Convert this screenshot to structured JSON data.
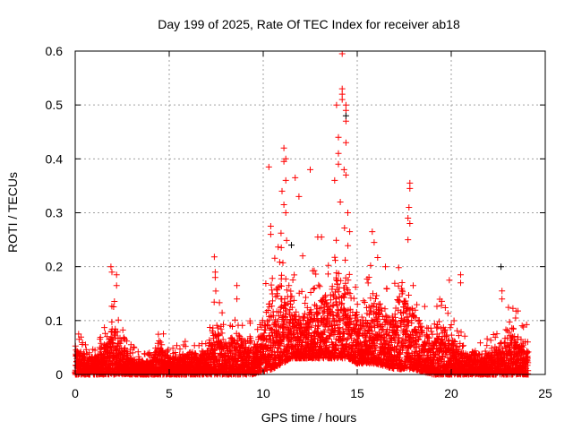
{
  "chart_data": {
    "type": "scatter",
    "title": "Day 199 of 2025, Rate Of TEC Index for receiver ab18",
    "xlabel": "GPS time / hours",
    "ylabel": "ROTI / TECUs",
    "xlim": [
      0,
      25
    ],
    "ylim": [
      0,
      0.6
    ],
    "xticks": [
      0,
      5,
      10,
      15,
      20,
      25
    ],
    "xtick_labels": [
      "0",
      "5",
      "10",
      "15",
      "20",
      "25"
    ],
    "yticks": [
      0,
      0.1,
      0.2,
      0.3,
      0.4,
      0.5,
      0.6
    ],
    "ytick_labels": [
      "0",
      "0.1",
      "0.2",
      "0.3",
      "0.4",
      "0.5",
      "0.6"
    ],
    "grid": true,
    "marker": "+",
    "color": "#ff0000",
    "secondary_color": "#000000",
    "data_extent_hours": [
      0,
      24.1
    ],
    "dense_envelope": {
      "x": [
        0,
        0.5,
        1,
        1.5,
        2,
        2.5,
        3,
        3.5,
        4,
        4.5,
        5,
        5.5,
        6,
        6.5,
        7,
        7.5,
        8,
        8.5,
        9,
        9.5,
        10,
        10.5,
        11,
        11.5,
        12,
        12.5,
        13,
        13.5,
        14,
        14.5,
        15,
        15.5,
        16,
        16.5,
        17,
        17.5,
        18,
        18.5,
        19,
        19.5,
        20,
        20.5,
        21,
        21.5,
        22,
        22.5,
        23,
        23.5,
        24
      ],
      "ymax": [
        0.06,
        0.05,
        0.04,
        0.06,
        0.13,
        0.07,
        0.04,
        0.03,
        0.03,
        0.07,
        0.045,
        0.05,
        0.05,
        0.045,
        0.05,
        0.12,
        0.08,
        0.09,
        0.08,
        0.07,
        0.12,
        0.17,
        0.2,
        0.17,
        0.12,
        0.14,
        0.15,
        0.17,
        0.22,
        0.2,
        0.14,
        0.13,
        0.18,
        0.12,
        0.13,
        0.2,
        0.14,
        0.1,
        0.1,
        0.11,
        0.08,
        0.06,
        0.05,
        0.05,
        0.05,
        0.06,
        0.1,
        0.09,
        0.07
      ],
      "ymin": [
        0,
        0,
        0,
        0,
        0,
        0,
        0,
        0,
        0,
        0,
        0,
        0,
        0,
        0,
        0,
        0,
        0,
        0,
        0,
        0,
        0.005,
        0.01,
        0.02,
        0.03,
        0.03,
        0.03,
        0.03,
        0.03,
        0.03,
        0.03,
        0.02,
        0.02,
        0.02,
        0.015,
        0.01,
        0.01,
        0.01,
        0.005,
        0,
        0,
        0,
        0,
        0,
        0,
        0,
        0,
        0,
        0,
        0
      ]
    },
    "peaks": [
      [
        1.9,
        0.2
      ],
      [
        1.95,
        0.19
      ],
      [
        2.2,
        0.185
      ],
      [
        2.2,
        0.165
      ],
      [
        7.4,
        0.218
      ],
      [
        7.45,
        0.19
      ],
      [
        7.45,
        0.18
      ],
      [
        8.6,
        0.165
      ],
      [
        8.6,
        0.14
      ],
      [
        10.4,
        0.275
      ],
      [
        10.4,
        0.26
      ],
      [
        10.3,
        0.385
      ],
      [
        11.1,
        0.42
      ],
      [
        11.2,
        0.4
      ],
      [
        11.1,
        0.395
      ],
      [
        11.2,
        0.36
      ],
      [
        11.0,
        0.34
      ],
      [
        11.1,
        0.315
      ],
      [
        11.7,
        0.365
      ],
      [
        12.5,
        0.38
      ],
      [
        11.2,
        0.3
      ],
      [
        13.9,
        0.5
      ],
      [
        14.0,
        0.44
      ],
      [
        14.0,
        0.41
      ],
      [
        14.2,
        0.595
      ],
      [
        14.2,
        0.53
      ],
      [
        14.2,
        0.52
      ],
      [
        14.2,
        0.51
      ],
      [
        14.4,
        0.5
      ],
      [
        14.4,
        0.49
      ],
      [
        14.4,
        0.47
      ],
      [
        13.8,
        0.36
      ],
      [
        14.0,
        0.39
      ],
      [
        14.3,
        0.38
      ],
      [
        14.4,
        0.43
      ],
      [
        14.4,
        0.37
      ],
      [
        14.1,
        0.32
      ],
      [
        14.5,
        0.3
      ],
      [
        15.8,
        0.265
      ],
      [
        15.9,
        0.245
      ],
      [
        17.8,
        0.355
      ],
      [
        17.8,
        0.345
      ],
      [
        17.75,
        0.31
      ],
      [
        17.7,
        0.29
      ],
      [
        17.8,
        0.28
      ],
      [
        17.7,
        0.25
      ],
      [
        20.5,
        0.185
      ],
      [
        20.5,
        0.17
      ],
      [
        19.9,
        0.175
      ],
      [
        22.7,
        0.155
      ],
      [
        22.7,
        0.14
      ],
      [
        16.5,
        0.2
      ],
      [
        14.6,
        0.265
      ],
      [
        13.1,
        0.255
      ],
      [
        12.9,
        0.255
      ],
      [
        12.1,
        0.22
      ],
      [
        11.9,
        0.33
      ]
    ],
    "black_points": [
      [
        22.65,
        0.2
      ],
      [
        14.4,
        0.48
      ],
      [
        11.5,
        0.24
      ]
    ]
  }
}
